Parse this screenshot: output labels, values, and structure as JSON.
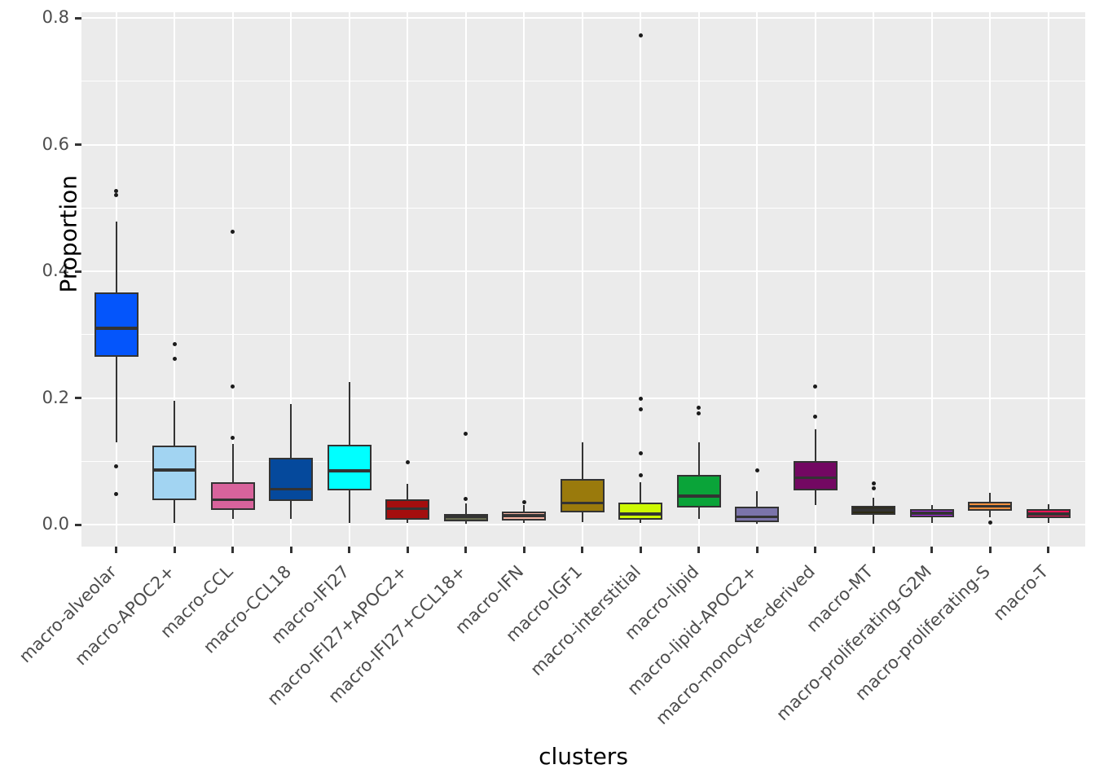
{
  "chart_data": {
    "type": "boxplot",
    "xlabel": "clusters",
    "ylabel": "Proportion",
    "ylim": [
      -0.035,
      0.81
    ],
    "grid": true,
    "legend": "none",
    "panel_bg": "#EBEBEB",
    "grid_color": "#FFFFFF",
    "box_border_color": "#333333",
    "axis_text_color": "#4D4D4D",
    "axis_title_color": "#000000",
    "y_major_ticks": [
      0.0,
      0.2,
      0.4,
      0.6,
      0.8
    ],
    "y_minor_ticks": [
      0.1,
      0.3,
      0.5,
      0.7
    ],
    "y_tick_labels": [
      "0.0",
      "0.2",
      "0.4",
      "0.6",
      "0.8"
    ],
    "categories": [
      "macro-alveolar",
      "macro-APOC2+",
      "macro-CCL",
      "macro-CCL18",
      "macro-IFI27",
      "macro-IFI27+APOC2+",
      "macro-IFI27+CCL18+",
      "macro-IFN",
      "macro-IGF1",
      "macro-interstitial",
      "macro-lipid",
      "macro-lipid-APOC2+",
      "macro-monocyte-derived",
      "macro-MT",
      "macro-proliferating-G2M",
      "macro-proliferating-S",
      "macro-T"
    ],
    "series": [
      {
        "name": "macro-alveolar",
        "color": "#0455FB",
        "whisker_low": 0.13,
        "q1": 0.265,
        "median": 0.31,
        "q3": 0.366,
        "whisker_high": 0.478,
        "outliers": [
          0.527,
          0.52,
          0.092,
          0.048
        ]
      },
      {
        "name": "macro-APOC2+",
        "color": "#A2D4F2",
        "whisker_low": 0.003,
        "q1": 0.038,
        "median": 0.086,
        "q3": 0.125,
        "whisker_high": 0.195,
        "outliers": [
          0.285,
          0.262
        ]
      },
      {
        "name": "macro-CCL",
        "color": "#D8639C",
        "whisker_low": 0.009,
        "q1": 0.023,
        "median": 0.039,
        "q3": 0.067,
        "whisker_high": 0.127,
        "outliers": [
          0.462,
          0.218,
          0.137
        ]
      },
      {
        "name": "macro-CCL18",
        "color": "#05499C",
        "whisker_low": 0.009,
        "q1": 0.037,
        "median": 0.056,
        "q3": 0.105,
        "whisker_high": 0.19,
        "outliers": []
      },
      {
        "name": "macro-IFI27",
        "color": "#00FFFF",
        "whisker_low": 0.002,
        "q1": 0.054,
        "median": 0.085,
        "q3": 0.126,
        "whisker_high": 0.225,
        "outliers": []
      },
      {
        "name": "macro-IFI27+APOC2+",
        "color": "#A40E0E",
        "whisker_low": 0.002,
        "q1": 0.008,
        "median": 0.025,
        "q3": 0.04,
        "whisker_high": 0.064,
        "outliers": [
          0.099
        ]
      },
      {
        "name": "macro-IFI27+CCL18+",
        "color": "#676B50",
        "whisker_low": 0.001,
        "q1": 0.005,
        "median": 0.012,
        "q3": 0.017,
        "whisker_high": 0.033,
        "outliers": [
          0.144,
          0.04
        ]
      },
      {
        "name": "macro-IFN",
        "color": "#F9B6A5",
        "whisker_low": 0.002,
        "q1": 0.007,
        "median": 0.014,
        "q3": 0.02,
        "whisker_high": 0.031,
        "outliers": [
          0.035
        ]
      },
      {
        "name": "macro-IGF1",
        "color": "#9A7A0C",
        "whisker_low": 0.004,
        "q1": 0.019,
        "median": 0.034,
        "q3": 0.072,
        "whisker_high": 0.13,
        "outliers": []
      },
      {
        "name": "macro-interstitial",
        "color": "#CDF902",
        "whisker_low": 0.002,
        "q1": 0.008,
        "median": 0.017,
        "q3": 0.035,
        "whisker_high": 0.067,
        "outliers": [
          0.772,
          0.199,
          0.182,
          0.112,
          0.078
        ]
      },
      {
        "name": "macro-lipid",
        "color": "#0AA439",
        "whisker_low": 0.009,
        "q1": 0.027,
        "median": 0.045,
        "q3": 0.078,
        "whisker_high": 0.13,
        "outliers": [
          0.184,
          0.176
        ]
      },
      {
        "name": "macro-lipid-APOC2+",
        "color": "#7B74AA",
        "whisker_low": 0.001,
        "q1": 0.004,
        "median": 0.012,
        "q3": 0.028,
        "whisker_high": 0.053,
        "outliers": [
          0.086
        ]
      },
      {
        "name": "macro-monocyte-derived",
        "color": "#730862",
        "whisker_low": 0.031,
        "q1": 0.054,
        "median": 0.074,
        "q3": 0.1,
        "whisker_high": 0.15,
        "outliers": [
          0.218,
          0.171
        ]
      },
      {
        "name": "macro-MT",
        "color": "#2C2A12",
        "whisker_low": 0.001,
        "q1": 0.015,
        "median": 0.023,
        "q3": 0.029,
        "whisker_high": 0.042,
        "outliers": [
          0.065,
          0.057
        ]
      },
      {
        "name": "macro-proliferating-G2M",
        "color": "#A828E8",
        "whisker_low": 0.002,
        "q1": 0.012,
        "median": 0.018,
        "q3": 0.024,
        "whisker_high": 0.031,
        "outliers": []
      },
      {
        "name": "macro-proliferating-S",
        "color": "#F2903E",
        "whisker_low": 0.012,
        "q1": 0.022,
        "median": 0.029,
        "q3": 0.036,
        "whisker_high": 0.05,
        "outliers": [
          0.003
        ]
      },
      {
        "name": "macro-T",
        "color": "#F01355",
        "whisker_low": 0.003,
        "q1": 0.01,
        "median": 0.017,
        "q3": 0.024,
        "whisker_high": 0.032,
        "outliers": []
      }
    ]
  }
}
